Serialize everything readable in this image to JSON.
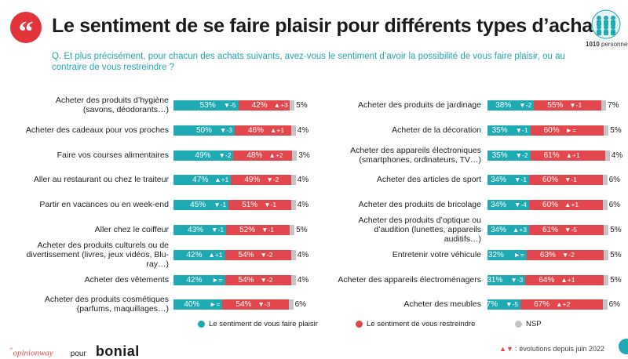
{
  "header": {
    "quote_glyph": "“",
    "title": "Le sentiment de se faire plaisir pour différents types d’achats",
    "sample_size": "1010",
    "sample_unit": "personnes",
    "question": "Q. Et plus précisément, pour chacun des achats suivants, avez-vous le sentiment d’avoir la possibilité de vous faire plaisir, ou au contraire de vous restreindre ?"
  },
  "colors": {
    "plaisir": "#1fa9b3",
    "restreindre": "#e2474e",
    "nsp": "#c4c4c4",
    "accent": "#e3343c"
  },
  "chart_data": {
    "type": "bar",
    "stacked": true,
    "orientation": "horizontal",
    "unit": "%",
    "series_names": [
      "Le sentiment de vous faire plaisir",
      "Le sentiment de vous restreindre",
      "NSP"
    ],
    "left": [
      {
        "label": "Acheter des produits d’hygiène (savons, déodorants…)",
        "plaisir": 53,
        "plaisir_evo": "▼-5",
        "restreindre": 42,
        "restreindre_evo": "▲+3",
        "nsp": 5
      },
      {
        "label": "Acheter des cadeaux pour vos proches",
        "plaisir": 50,
        "plaisir_evo": "▼-3",
        "restreindre": 46,
        "restreindre_evo": "▲+1",
        "nsp": 4
      },
      {
        "label": "Faire vos courses alimentaires",
        "plaisir": 49,
        "plaisir_evo": "▼-2",
        "restreindre": 48,
        "restreindre_evo": "▲+2",
        "nsp": 3
      },
      {
        "label": "Aller au restaurant ou chez le traiteur",
        "plaisir": 47,
        "plaisir_evo": "▲+1",
        "restreindre": 49,
        "restreindre_evo": "▼-2",
        "nsp": 4
      },
      {
        "label": "Partir en vacances ou en week-end",
        "plaisir": 45,
        "plaisir_evo": "▼-1",
        "restreindre": 51,
        "restreindre_evo": "▼-1",
        "nsp": 4
      },
      {
        "label": "Aller chez le coiffeur",
        "plaisir": 43,
        "plaisir_evo": "▼-1",
        "restreindre": 52,
        "restreindre_evo": "▼-1",
        "nsp": 5
      },
      {
        "label": "Acheter des produits culturels ou de divertissement (livres, jeux vidéos, Blu-ray…)",
        "plaisir": 42,
        "plaisir_evo": "▲+1",
        "restreindre": 54,
        "restreindre_evo": "▼-2",
        "nsp": 4
      },
      {
        "label": "Acheter des vêtements",
        "plaisir": 42,
        "plaisir_evo": "►=",
        "restreindre": 54,
        "restreindre_evo": "▼-2",
        "nsp": 4
      },
      {
        "label": "Acheter des produits cosmétiques (parfums, maquillages…)",
        "plaisir": 40,
        "plaisir_evo": "►=",
        "restreindre": 54,
        "restreindre_evo": "▼-3",
        "nsp": 6
      }
    ],
    "right": [
      {
        "label": "Acheter des produits de jardinage",
        "plaisir": 38,
        "plaisir_evo": "▼-2",
        "restreindre": 55,
        "restreindre_evo": "▼-1",
        "nsp": 7
      },
      {
        "label": "Acheter de la décoration",
        "plaisir": 35,
        "plaisir_evo": "▼-1",
        "restreindre": 60,
        "restreindre_evo": "►=",
        "nsp": 5
      },
      {
        "label": "Acheter des appareils électroniques (smartphones, ordinateurs, TV…)",
        "plaisir": 35,
        "plaisir_evo": "▼-2",
        "restreindre": 61,
        "restreindre_evo": "▲+1",
        "nsp": 4
      },
      {
        "label": "Acheter des articles de sport",
        "plaisir": 34,
        "plaisir_evo": "▼-1",
        "restreindre": 60,
        "restreindre_evo": "▼-1",
        "nsp": 6
      },
      {
        "label": "Acheter des produits de bricolage",
        "plaisir": 34,
        "plaisir_evo": "▼-4",
        "restreindre": 60,
        "restreindre_evo": "▲+1",
        "nsp": 6
      },
      {
        "label": "Acheter des produits d’optique ou d’audition (lunettes, appareils auditifs…)",
        "plaisir": 34,
        "plaisir_evo": "▲+3",
        "restreindre": 61,
        "restreindre_evo": "▼-5",
        "nsp": 5
      },
      {
        "label": "Entretenir votre véhicule",
        "plaisir": 32,
        "plaisir_evo": "►=",
        "restreindre": 63,
        "restreindre_evo": "▼-2",
        "nsp": 5
      },
      {
        "label": "Acheter des appareils électroménagers",
        "plaisir": 31,
        "plaisir_evo": "▼-3",
        "restreindre": 64,
        "restreindre_evo": "▲+1",
        "nsp": 5
      },
      {
        "label": "Acheter des meubles",
        "plaisir": 27,
        "plaisir_evo": "▼-5",
        "restreindre": 67,
        "restreindre_evo": "▲+2",
        "nsp": 6
      }
    ]
  },
  "legend": {
    "plaisir": "Le sentiment de vous faire plaisir",
    "restreindre": "Le sentiment de vous restreindre",
    "nsp": "NSP"
  },
  "footer": {
    "brand_left": "opinionway",
    "brand_left_prefix": "“",
    "pour": "pour",
    "brand_right": "bonial",
    "evolution_symbols": "▲▼",
    "evolution_note": ": évolutions depuis juin 2022"
  }
}
